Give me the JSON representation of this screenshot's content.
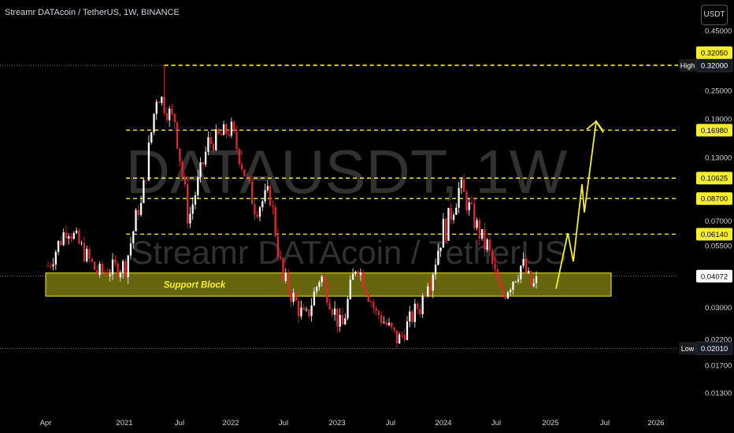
{
  "header": {
    "title": "Streamr DATAcoin / TetherUS, 1W, BINANCE",
    "currency": "USDT"
  },
  "watermark": {
    "symbol": "DATAUSDT, 1W",
    "name": "Streamr DATAcoin / TetherUS"
  },
  "colors": {
    "up": "#ffffff",
    "down": "#e6252e",
    "level": "#f5ee2b",
    "support_fill": "#77770f",
    "text": "#d1d4dc"
  },
  "chart_data": {
    "type": "candlestick",
    "yscale": "log",
    "ylim": [
      0.0115,
      0.52
    ],
    "y_ticks": [
      {
        "value": 0.45,
        "label": "0.45000"
      },
      {
        "value": 0.25,
        "label": "0.25000"
      },
      {
        "value": 0.19,
        "label": "0.19000"
      },
      {
        "value": 0.13,
        "label": "0.13000"
      },
      {
        "value": 0.07,
        "label": "0.07000"
      },
      {
        "value": 0.055,
        "label": "0.05500"
      },
      {
        "value": 0.03,
        "label": "0.03000"
      },
      {
        "value": 0.022,
        "label": "0.02200"
      },
      {
        "value": 0.017,
        "label": "0.01700"
      },
      {
        "value": 0.013,
        "label": "0.01300"
      }
    ],
    "x_ticks": [
      "Apr",
      "2021",
      "Jul",
      "2022",
      "Jul",
      "2023",
      "Jul",
      "2024",
      "Jul",
      "2025",
      "Jul",
      "2026"
    ],
    "levels": [
      {
        "value": 0.3205,
        "label": "0.32050"
      },
      {
        "value": 0.1698,
        "label": "0.16980"
      },
      {
        "value": 0.10625,
        "label": "0.10625"
      },
      {
        "value": 0.087,
        "label": "0.08700"
      },
      {
        "value": 0.0614,
        "label": "0.06140"
      }
    ],
    "high": {
      "value": 0.32,
      "tag": "High",
      "label": "0.32000"
    },
    "low": {
      "value": 0.0201,
      "tag": "Low",
      "label": "0.02010"
    },
    "last_price": {
      "value": 0.04072,
      "label": "0.04072"
    },
    "support_block": {
      "label": "Support Block",
      "top": 0.042,
      "bottom": 0.0335
    },
    "projection": [
      0.036,
      0.062,
      0.047,
      0.1,
      0.076,
      0.185,
      0.17
    ],
    "segments": [
      {
        "weeks": 8,
        "from": 0.045,
        "to": 0.065,
        "vol": 0.22
      },
      {
        "weeks": 12,
        "from": 0.065,
        "to": 0.042,
        "vol": 0.2
      },
      {
        "weeks": 10,
        "from": 0.042,
        "to": 0.045,
        "vol": 0.2
      },
      {
        "weeks": 6,
        "from": 0.045,
        "to": 0.08,
        "vol": 0.22
      },
      {
        "weeks": 7,
        "from": 0.08,
        "to": 0.24,
        "vol": 0.25
      },
      {
        "weeks": 6,
        "from": 0.24,
        "to": 0.19,
        "vol": 0.22
      },
      {
        "weeks": 6,
        "from": 0.19,
        "to": 0.075,
        "vol": 0.25
      },
      {
        "weeks": 8,
        "from": 0.075,
        "to": 0.15,
        "vol": 0.22
      },
      {
        "weeks": 8,
        "from": 0.15,
        "to": 0.17,
        "vol": 0.2
      },
      {
        "weeks": 10,
        "from": 0.17,
        "to": 0.08,
        "vol": 0.2
      },
      {
        "weeks": 5,
        "from": 0.08,
        "to": 0.09,
        "vol": 0.2
      },
      {
        "weeks": 6,
        "from": 0.09,
        "to": 0.038,
        "vol": 0.25
      },
      {
        "weeks": 8,
        "from": 0.038,
        "to": 0.027,
        "vol": 0.22
      },
      {
        "weeks": 6,
        "from": 0.027,
        "to": 0.04,
        "vol": 0.22
      },
      {
        "weeks": 8,
        "from": 0.04,
        "to": 0.025,
        "vol": 0.22
      },
      {
        "weeks": 6,
        "from": 0.025,
        "to": 0.045,
        "vol": 0.22
      },
      {
        "weeks": 8,
        "from": 0.045,
        "to": 0.028,
        "vol": 0.2
      },
      {
        "weeks": 8,
        "from": 0.028,
        "to": 0.022,
        "vol": 0.2
      },
      {
        "weeks": 8,
        "from": 0.022,
        "to": 0.03,
        "vol": 0.2
      },
      {
        "weeks": 4,
        "from": 0.03,
        "to": 0.04,
        "vol": 0.2
      },
      {
        "weeks": 6,
        "from": 0.04,
        "to": 0.065,
        "vol": 0.25
      },
      {
        "weeks": 6,
        "from": 0.065,
        "to": 0.095,
        "vol": 0.25
      },
      {
        "weeks": 10,
        "from": 0.095,
        "to": 0.055,
        "vol": 0.22
      },
      {
        "weeks": 6,
        "from": 0.055,
        "to": 0.034,
        "vol": 0.22
      },
      {
        "weeks": 8,
        "from": 0.034,
        "to": 0.045,
        "vol": 0.22
      },
      {
        "weeks": 4,
        "from": 0.045,
        "to": 0.037,
        "vol": 0.2
      },
      {
        "weeks": 2,
        "from": 0.037,
        "to": 0.04072,
        "vol": 0.2
      }
    ]
  }
}
